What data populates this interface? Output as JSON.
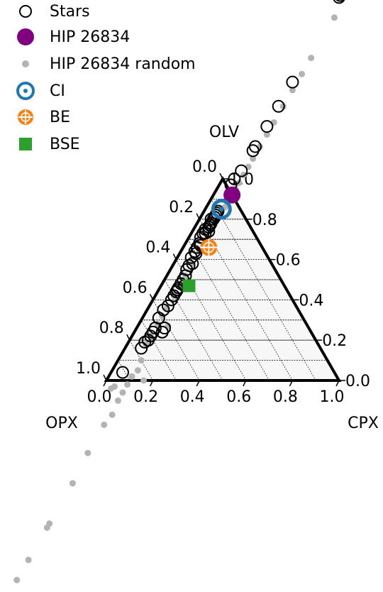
{
  "chart_data": {
    "type": "scatter",
    "ternary": true,
    "axes": {
      "top": "OLV",
      "left": "OPX",
      "right": "CPX"
    },
    "ticks": {
      "bottom": [
        "0.0",
        "0.2",
        "0.4",
        "0.6",
        "0.8",
        "1.0"
      ],
      "right": [
        "0.0",
        "0.2",
        "0.4",
        "0.6",
        "0.8",
        "1.0"
      ],
      "left": [
        "0.0",
        "0.2",
        "0.4",
        "0.6",
        "0.8",
        "1.0"
      ]
    },
    "grid": true,
    "legend": {
      "placement": "top-left",
      "entries": [
        "Stars",
        "HIP 26834",
        "HIP 26834 random",
        "CI",
        "BE",
        "BSE"
      ]
    },
    "colors": {
      "stars": "#000000",
      "hip": "#800080",
      "random": "#b3b3b3",
      "ci": "#1f77b4",
      "be": "#ff7f0e",
      "bse": "#2ca02c"
    },
    "series": [
      {
        "name": "Stars",
        "points": [
          [
            0.1,
            0.84,
            0.06
          ],
          [
            0.11,
            0.83,
            0.06
          ],
          [
            0.12,
            0.82,
            0.06
          ],
          [
            0.13,
            0.81,
            0.06
          ],
          [
            0.15,
            0.8,
            0.05
          ],
          [
            0.14,
            0.8,
            0.06
          ],
          [
            0.16,
            0.78,
            0.06
          ],
          [
            0.17,
            0.77,
            0.06
          ],
          [
            0.18,
            0.76,
            0.06
          ],
          [
            0.2,
            0.75,
            0.05
          ],
          [
            0.22,
            0.73,
            0.05
          ],
          [
            0.24,
            0.71,
            0.05
          ],
          [
            0.26,
            0.68,
            0.06
          ],
          [
            0.28,
            0.66,
            0.06
          ],
          [
            0.3,
            0.64,
            0.06
          ],
          [
            0.33,
            0.61,
            0.06
          ],
          [
            0.36,
            0.57,
            0.07
          ],
          [
            0.38,
            0.55,
            0.07
          ],
          [
            0.4,
            0.52,
            0.08
          ],
          [
            0.42,
            0.5,
            0.08
          ],
          [
            0.44,
            0.48,
            0.08
          ],
          [
            0.46,
            0.46,
            0.08
          ],
          [
            0.48,
            0.44,
            0.08
          ],
          [
            0.5,
            0.42,
            0.08
          ],
          [
            0.52,
            0.4,
            0.08
          ],
          [
            0.55,
            0.37,
            0.08
          ],
          [
            0.58,
            0.35,
            0.07
          ],
          [
            0.62,
            0.31,
            0.07
          ],
          [
            0.66,
            0.26,
            0.08
          ],
          [
            0.68,
            0.24,
            0.08
          ],
          [
            0.7,
            0.22,
            0.08
          ],
          [
            0.72,
            0.2,
            0.08
          ],
          [
            0.74,
            0.19,
            0.07
          ],
          [
            0.77,
            0.16,
            0.07
          ],
          [
            0.62,
            0.26,
            0.12
          ],
          [
            0.64,
            0.24,
            0.12
          ],
          [
            0.3,
            0.63,
            0.07
          ],
          [
            0.34,
            0.58,
            0.08
          ],
          [
            0.47,
            0.45,
            0.08
          ],
          [
            0.43,
            0.47,
            0.1
          ],
          [
            0.26,
            0.67,
            0.07
          ],
          [
            0.21,
            0.73,
            0.06
          ],
          [
            0.19,
            0.74,
            0.07
          ],
          [
            0.91,
            0.04,
            0.05
          ],
          [
            -0.02,
            0.97,
            0.05
          ],
          [
            -0.05,
            1.0,
            0.05
          ],
          [
            -0.1,
            1.04,
            0.06
          ],
          [
            -0.2,
            1.14,
            0.06
          ],
          [
            -0.22,
            1.16,
            0.06
          ],
          [
            -0.32,
            1.26,
            0.06
          ],
          [
            -0.42,
            1.36,
            0.06
          ],
          [
            -0.54,
            1.48,
            0.06
          ],
          [
            -0.95,
            1.9,
            0.05
          ],
          [
            -0.96,
            1.91,
            0.05
          ]
        ]
      },
      {
        "name": "HIP 26834",
        "points": [
          [
            0.0,
            0.92,
            0.08
          ]
        ]
      },
      {
        "name": "HIP 26834 random",
        "points": [
          [
            0.02,
            0.9,
            0.08
          ],
          [
            0.04,
            0.88,
            0.08
          ],
          [
            0.06,
            0.86,
            0.08
          ],
          [
            0.08,
            0.85,
            0.07
          ],
          [
            -0.03,
            0.95,
            0.08
          ],
          [
            -0.06,
            0.98,
            0.08
          ],
          [
            -0.1,
            1.02,
            0.08
          ],
          [
            -0.14,
            1.06,
            0.08
          ],
          [
            -0.18,
            1.1,
            0.08
          ],
          [
            -0.24,
            1.16,
            0.08
          ],
          [
            -0.3,
            1.22,
            0.08
          ],
          [
            -0.36,
            1.28,
            0.08
          ],
          [
            -0.44,
            1.36,
            0.08
          ],
          [
            -0.52,
            1.44,
            0.08
          ],
          [
            -0.6,
            1.52,
            0.08
          ],
          [
            -0.68,
            1.6,
            0.08
          ],
          [
            -0.88,
            1.8,
            0.08
          ],
          [
            0.22,
            0.7,
            0.08
          ],
          [
            0.28,
            0.64,
            0.08
          ],
          [
            0.34,
            0.58,
            0.08
          ],
          [
            0.4,
            0.52,
            0.08
          ],
          [
            0.45,
            0.47,
            0.08
          ],
          [
            0.5,
            0.42,
            0.08
          ],
          [
            0.56,
            0.36,
            0.08
          ],
          [
            0.6,
            0.32,
            0.08
          ],
          [
            0.64,
            0.28,
            0.08
          ],
          [
            0.7,
            0.22,
            0.08
          ],
          [
            0.74,
            0.18,
            0.08
          ],
          [
            0.8,
            0.1,
            0.1
          ],
          [
            0.84,
            0.05,
            0.11
          ],
          [
            0.88,
            0.02,
            0.1
          ],
          [
            0.92,
            -0.02,
            0.1
          ],
          [
            0.96,
            -0.06,
            0.1
          ],
          [
            1.0,
            -0.1,
            0.1
          ],
          [
            1.06,
            -0.17,
            0.11
          ],
          [
            1.12,
            -0.22,
            0.1
          ],
          [
            1.26,
            -0.36,
            0.1
          ],
          [
            1.4,
            -0.51,
            0.11
          ],
          [
            1.6,
            -0.71,
            0.11
          ],
          [
            1.62,
            -0.73,
            0.11
          ],
          [
            1.78,
            -0.89,
            0.11
          ],
          [
            1.88,
            -0.99,
            0.11
          ],
          [
            1.0,
            -0.04,
            0.04
          ],
          [
            0.98,
            -0.03,
            0.05
          ],
          [
            0.84,
            0.0,
            0.16
          ],
          [
            0.6,
            0.27,
            0.13
          ]
        ]
      },
      {
        "name": "CI",
        "points": [
          [
            0.08,
            0.85,
            0.07
          ]
        ]
      },
      {
        "name": "BE",
        "points": [
          [
            0.23,
            0.66,
            0.11
          ]
        ]
      },
      {
        "name": "BSE",
        "points": [
          [
            0.41,
            0.47,
            0.12
          ]
        ]
      }
    ]
  }
}
